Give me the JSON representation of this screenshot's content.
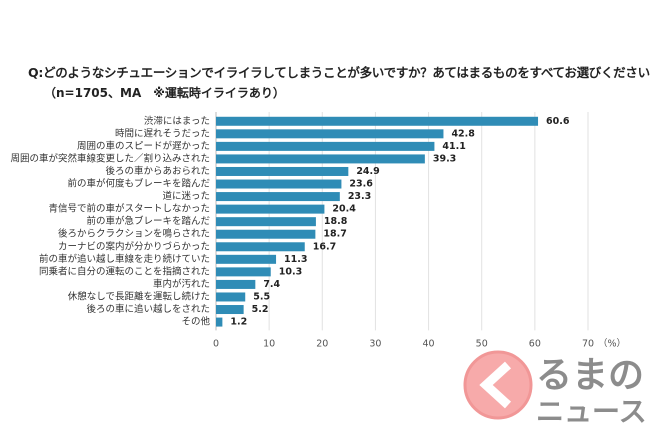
{
  "chart_data": {
    "type": "bar",
    "orientation": "horizontal",
    "title": "Q:どのようなシチュエーションでイライラしてしまうことが多いですか？あてはまるものをすべてお選びください。",
    "subtitle": "（n=1705、MA　※運転時イライラあり）",
    "categories": [
      "渋滞にはまった",
      "時間に遅れそうだった",
      "周囲の車のスピードが遅かった",
      "周囲の車が突然車線変更した／割り込みされた",
      "後ろの車からあおられた",
      "前の車が何度もブレーキを踏んだ",
      "道に迷った",
      "青信号で前の車がスタートしなかった",
      "前の車が急ブレーキを踏んだ",
      "後ろからクラクションを鳴らされた",
      "カーナビの案内が分かりづらかった",
      "前の車が追い越し車線を走り続けていた",
      "同乗者に自分の運転のことを指摘された",
      "車内が汚れた",
      "休憩なしで長距離を運転し続けた",
      "後ろの車に追い越しをされた",
      "その他"
    ],
    "values": [
      60.6,
      42.8,
      41.1,
      39.3,
      24.9,
      23.6,
      23.3,
      20.4,
      18.8,
      18.7,
      16.7,
      11.3,
      10.3,
      7.4,
      5.5,
      5.2,
      1.2
    ],
    "value_labels": [
      "60.6",
      "42.8",
      "41.1",
      "39.3",
      "24.9",
      "23.6",
      "23.3",
      "20.4",
      "18.8",
      "18.7",
      "16.7",
      "11.3",
      "10.3",
      "7.4",
      "5.5",
      "5.2",
      "1.2"
    ],
    "xticks": [
      "0",
      "10",
      "20",
      "30",
      "40",
      "50",
      "60",
      "70"
    ],
    "xlim": [
      0,
      70
    ],
    "unit_label": "（%）",
    "grid": true,
    "bar_color": "#2f8cb6"
  },
  "watermark": {
    "text": "くるまのニュース",
    "icon": "kuruma-news-logo-icon"
  }
}
